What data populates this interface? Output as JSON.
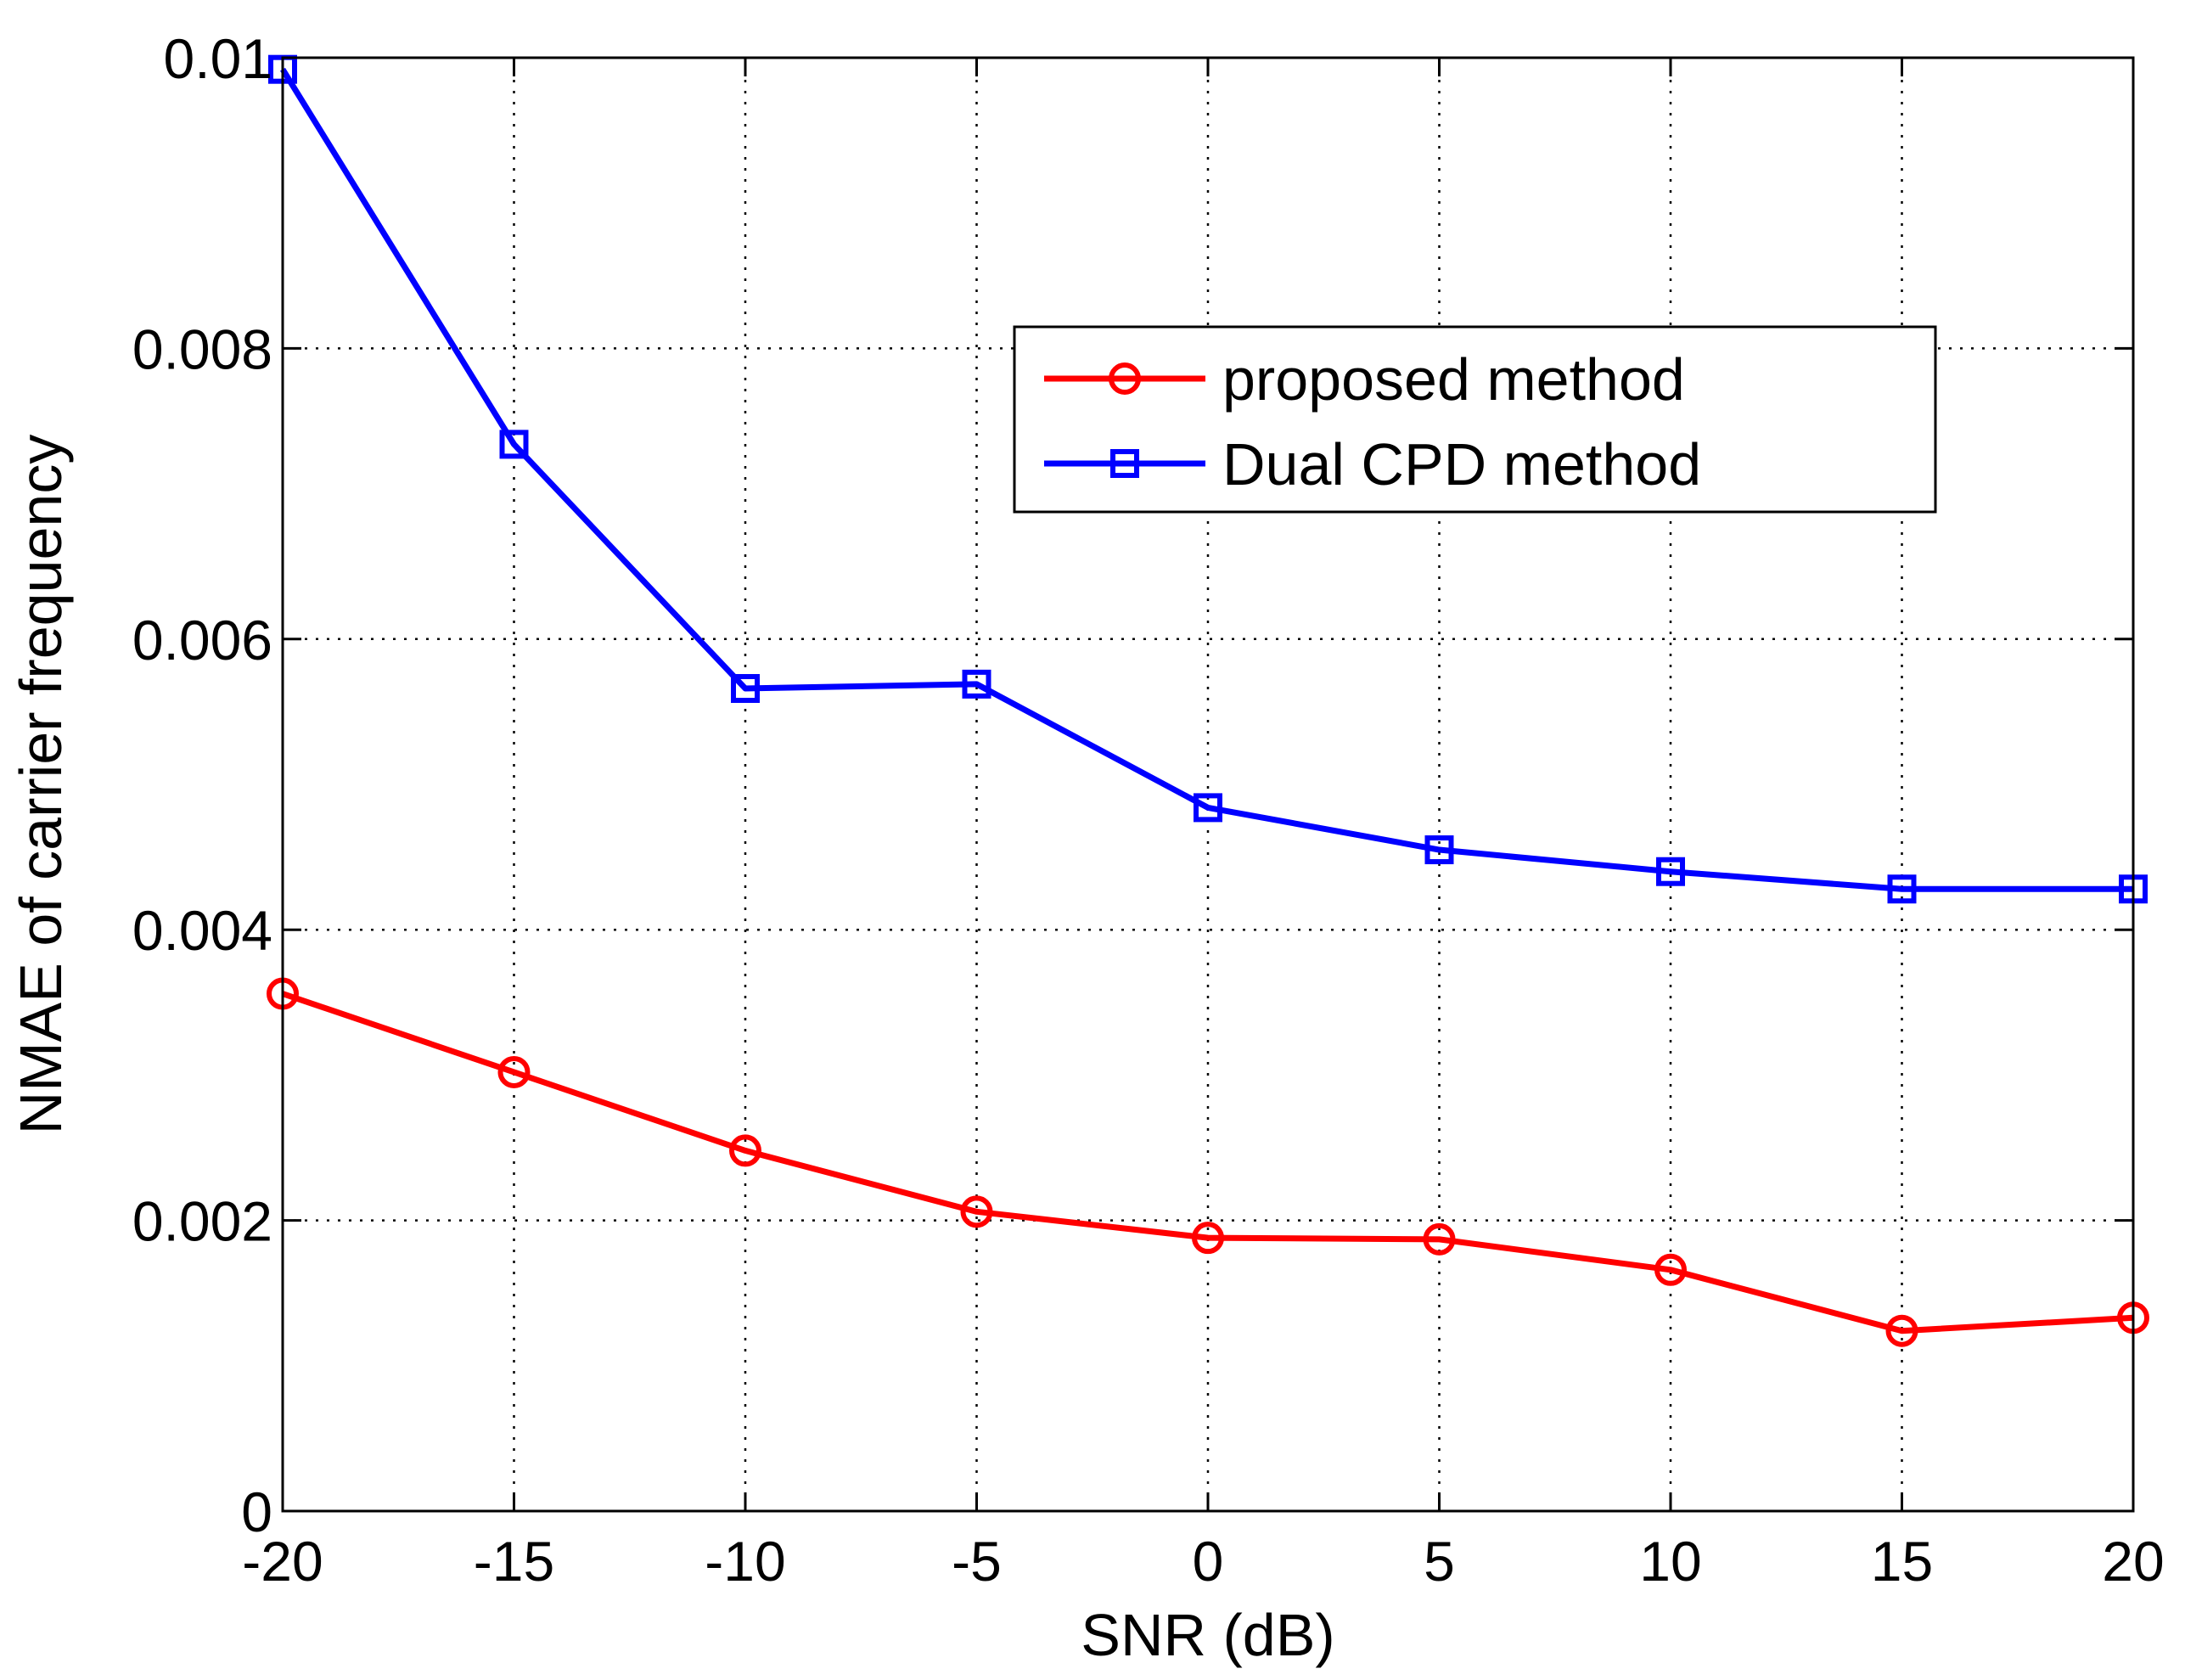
{
  "chart_data": {
    "type": "line",
    "title": "",
    "xlabel": "SNR (dB)",
    "ylabel": "NMAE of carrier frequency",
    "x": [
      -20,
      -15,
      -10,
      -5,
      0,
      5,
      10,
      15,
      20
    ],
    "xlim": [
      -20,
      20
    ],
    "ylim": [
      0,
      0.01
    ],
    "xticks": [
      -20,
      -15,
      -10,
      -5,
      0,
      5,
      10,
      15,
      20
    ],
    "xtick_labels": [
      "-20",
      "-15",
      "-10",
      "-5",
      "0",
      "5",
      "10",
      "15",
      "20"
    ],
    "yticks": [
      0,
      0.002,
      0.004,
      0.006,
      0.008,
      0.01
    ],
    "ytick_labels": [
      "0",
      "0.002",
      "0.004",
      "0.006",
      "0.008",
      "0.01"
    ],
    "grid": true,
    "legend_position": "top-right",
    "series": [
      {
        "name": "proposed method",
        "color": "#ff0000",
        "marker": "circle",
        "values": [
          0.00356,
          0.00302,
          0.00248,
          0.00206,
          0.00188,
          0.00187,
          0.00166,
          0.00124,
          0.00133
        ]
      },
      {
        "name": "Dual CPD method",
        "color": "#0000ff",
        "marker": "square",
        "values": [
          0.00992,
          0.00734,
          0.00566,
          0.00569,
          0.00484,
          0.00455,
          0.0044,
          0.00428,
          0.00428
        ]
      }
    ]
  }
}
